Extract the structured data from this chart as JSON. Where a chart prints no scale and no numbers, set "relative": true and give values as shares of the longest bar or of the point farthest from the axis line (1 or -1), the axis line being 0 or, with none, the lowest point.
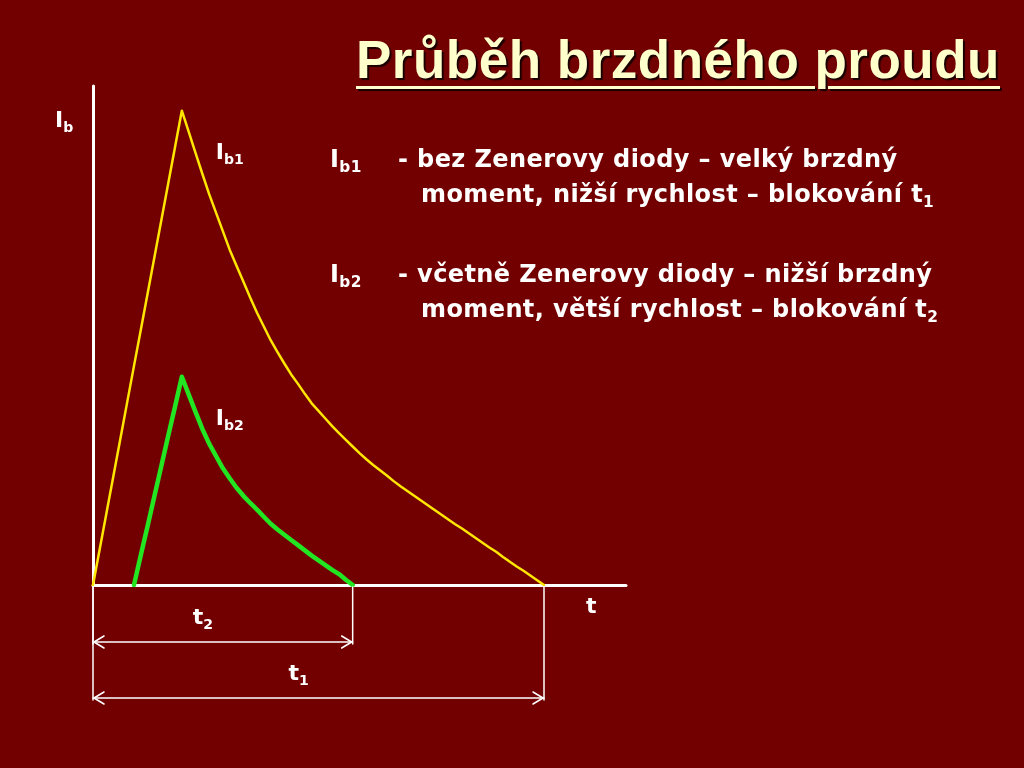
{
  "chart_data": {
    "type": "line",
    "title": "Průběh brzdného proudu",
    "xlabel": "t",
    "ylabel": "I$_{b}$",
    "relative": true,
    "grid": false,
    "marker": "none",
    "line_style": "solid",
    "categories": [
      null,
      null,
      null,
      null,
      null,
      null,
      null,
      null,
      null,
      null,
      null,
      null,
      null,
      null,
      null,
      null,
      null,
      null,
      null,
      null,
      null,
      null,
      null,
      null,
      null,
      null,
      null,
      null,
      null,
      null,
      null,
      null,
      null,
      null,
      null,
      null,
      null,
      null,
      null,
      null,
      null,
      null,
      null,
      null,
      null,
      null,
      null,
      null,
      null,
      null,
      null,
      null,
      null,
      null,
      null,
      null,
      null,
      null,
      null,
      null,
      null,
      null,
      null,
      null,
      null,
      null,
      null,
      null,
      null,
      null,
      null,
      null,
      null,
      null,
      null,
      null,
      null,
      null,
      null
    ],
    "series": [
      {
        "name": "I$_{b1}$",
        "color": "#ffe600",
        "values": [
          0,
          0.077,
          0.154,
          0.231,
          0.308,
          0.385,
          0.462,
          0.538,
          0.615,
          0.692,
          0.769,
          0.846,
          0.923,
          1,
          0.956,
          0.911,
          0.867,
          0.824,
          0.785,
          0.746,
          0.707,
          0.673,
          0.64,
          0.606,
          0.574,
          0.545,
          0.516,
          0.491,
          0.467,
          0.444,
          0.424,
          0.403,
          0.383,
          0.367,
          0.351,
          0.335,
          0.32,
          0.306,
          0.292,
          0.278,
          0.265,
          0.253,
          0.242,
          0.231,
          0.219,
          0.208,
          0.198,
          0.188,
          0.178,
          0.168,
          0.158,
          0.148,
          0.138,
          0.128,
          0.119,
          0.109,
          0.099,
          0.089,
          0.079,
          0.07,
          0.059,
          0.049,
          0.039,
          0.03,
          0.02,
          0.01,
          0,
          null,
          null,
          null,
          null,
          null,
          null,
          null,
          null,
          null,
          null,
          null,
          null
        ]
      },
      {
        "name": "I$_{b2}$",
        "color": "#22e622",
        "values": [
          null,
          null,
          null,
          null,
          null,
          null,
          0,
          0.063,
          0.125,
          0.188,
          0.251,
          0.314,
          0.376,
          0.439,
          0.402,
          0.365,
          0.329,
          0.298,
          0.272,
          0.246,
          0.225,
          0.205,
          0.188,
          0.173,
          0.159,
          0.144,
          0.129,
          0.117,
          0.106,
          0.095,
          0.084,
          0.073,
          0.062,
          0.052,
          0.042,
          0.032,
          0.023,
          0.011,
          0,
          null,
          null,
          null,
          null,
          null,
          null,
          null,
          null,
          null,
          null,
          null,
          null,
          null,
          null,
          null,
          null,
          null,
          null,
          null,
          null,
          null,
          null,
          null,
          null,
          null,
          null,
          null,
          null,
          null,
          null,
          null,
          null,
          null,
          null,
          null,
          null,
          null,
          null,
          null,
          null
        ]
      }
    ],
    "annotations": [
      "I$_{b1}$",
      "- bez Zenerovy diody – velký brzdný moment, nižší rychlost – blokování t$_{1}$",
      "I$_{b2}$",
      "- včetně Zenerovy diody – nižší brzdný moment, větší rychlost – blokování t$_{2}$",
      "t$_{2}$",
      "t$_{1}$"
    ]
  }
}
